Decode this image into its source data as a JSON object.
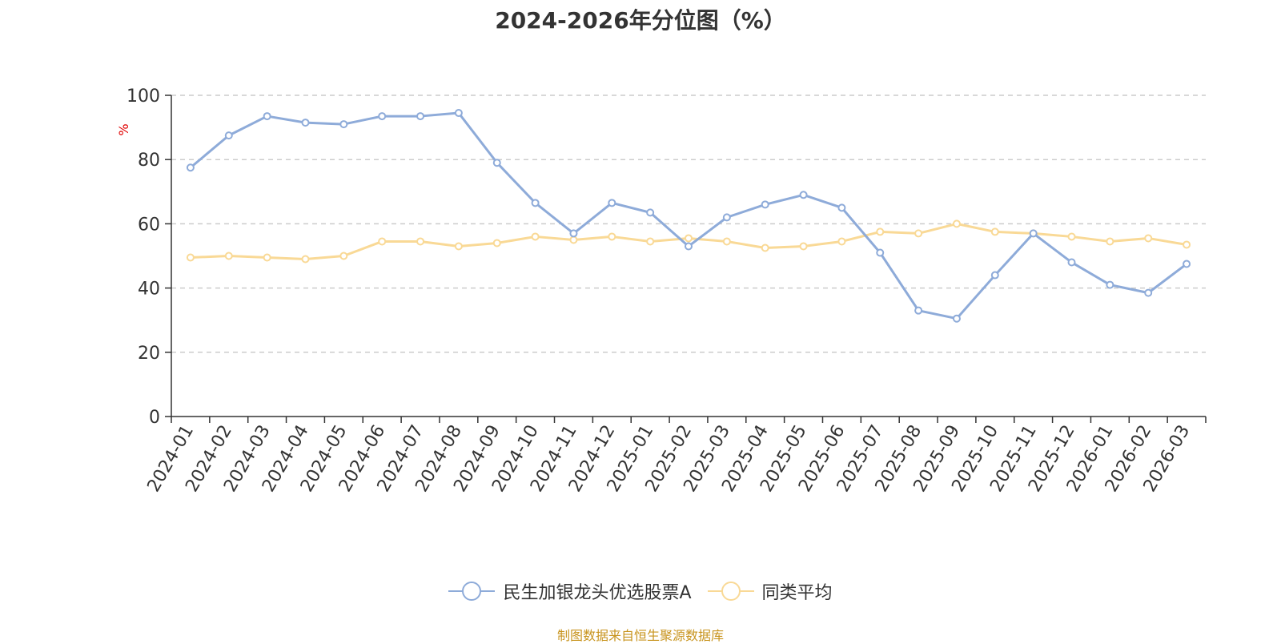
{
  "chart_data": {
    "type": "line",
    "title": "2024-2026年分位图（%）",
    "ylabel": "%",
    "xlabel": "",
    "ylim": [
      0,
      100
    ],
    "yticks": [
      0,
      20,
      40,
      60,
      80,
      100
    ],
    "grid": true,
    "legend_position": "bottom",
    "categories": [
      "2024-01",
      "2024-02",
      "2024-03",
      "2024-04",
      "2024-05",
      "2024-06",
      "2024-07",
      "2024-08",
      "2024-09",
      "2024-10",
      "2024-11",
      "2024-12",
      "2025-01",
      "2025-02",
      "2025-03",
      "2025-04",
      "2025-05",
      "2025-06",
      "2025-07",
      "2025-08",
      "2025-09",
      "2025-10",
      "2025-11",
      "2025-12",
      "2026-01",
      "2026-02",
      "2026-03"
    ],
    "series": [
      {
        "name": "民生加银龙头优选股票A",
        "color": "#8eabd9",
        "values": [
          77.5,
          87.5,
          93.5,
          91.5,
          91,
          93.5,
          93.5,
          94.5,
          79,
          66.5,
          57,
          66.5,
          63.5,
          53,
          62,
          66,
          69,
          65,
          51,
          33,
          30.5,
          44,
          57,
          48,
          41,
          38.5,
          47.5
        ]
      },
      {
        "name": "同类平均",
        "color": "#f9d996",
        "values": [
          49.5,
          50,
          49.5,
          49,
          50,
          54.5,
          54.5,
          53,
          54,
          56,
          55,
          56,
          54.5,
          55.5,
          54.5,
          52.5,
          53,
          54.5,
          57.5,
          57,
          60,
          57.5,
          57,
          56,
          54.5,
          55.5,
          53.5
        ]
      }
    ]
  },
  "source_text": "制图数据来自恒生聚源数据库"
}
